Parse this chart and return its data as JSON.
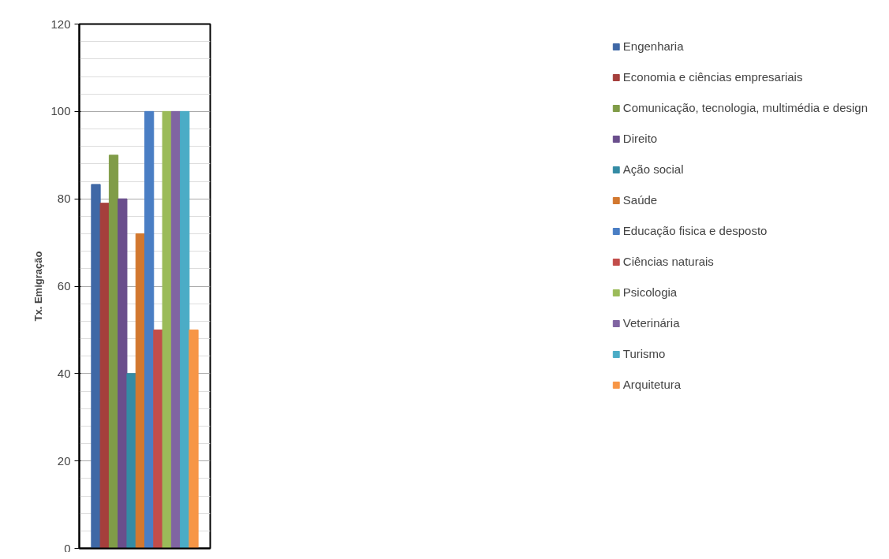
{
  "chart_data": {
    "type": "bar",
    "ylabel": "Tx. Emigração",
    "categories": [
      null
    ],
    "series": [
      {
        "name": "Engenharia",
        "color": "#3f68a6",
        "values": [
          83.3
        ]
      },
      {
        "name": "Economia e ciências empresariais",
        "color": "#a53f3c",
        "values": [
          79
        ]
      },
      {
        "name": "Comunicação, tecnologia, multimédia e design",
        "color": "#809c48",
        "values": [
          90
        ]
      },
      {
        "name": "Direito",
        "color": "#6a4e8c",
        "values": [
          80
        ]
      },
      {
        "name": "Ação social",
        "color": "#348ba4",
        "values": [
          40
        ]
      },
      {
        "name": "Saúde",
        "color": "#d2782f",
        "values": [
          72
        ]
      },
      {
        "name": "Educação fisica e desposto",
        "color": "#4a7ec4",
        "values": [
          100
        ]
      },
      {
        "name": "Ciências naturais",
        "color": "#c24d4a",
        "values": [
          50
        ]
      },
      {
        "name": "Psicologia",
        "color": "#9bbb59",
        "values": [
          100
        ]
      },
      {
        "name": "Veterinária",
        "color": "#8064a2",
        "values": [
          100
        ]
      },
      {
        "name": "Turismo",
        "color": "#4bacc6",
        "values": [
          100
        ]
      },
      {
        "name": "Arquitetura",
        "color": "#f79646",
        "values": [
          50
        ]
      }
    ],
    "ylim": [
      0,
      120
    ],
    "yticks": [
      0,
      20,
      40,
      60,
      80,
      100,
      120
    ],
    "grid": "y",
    "legend": "right",
    "tick_labels": "y"
  }
}
